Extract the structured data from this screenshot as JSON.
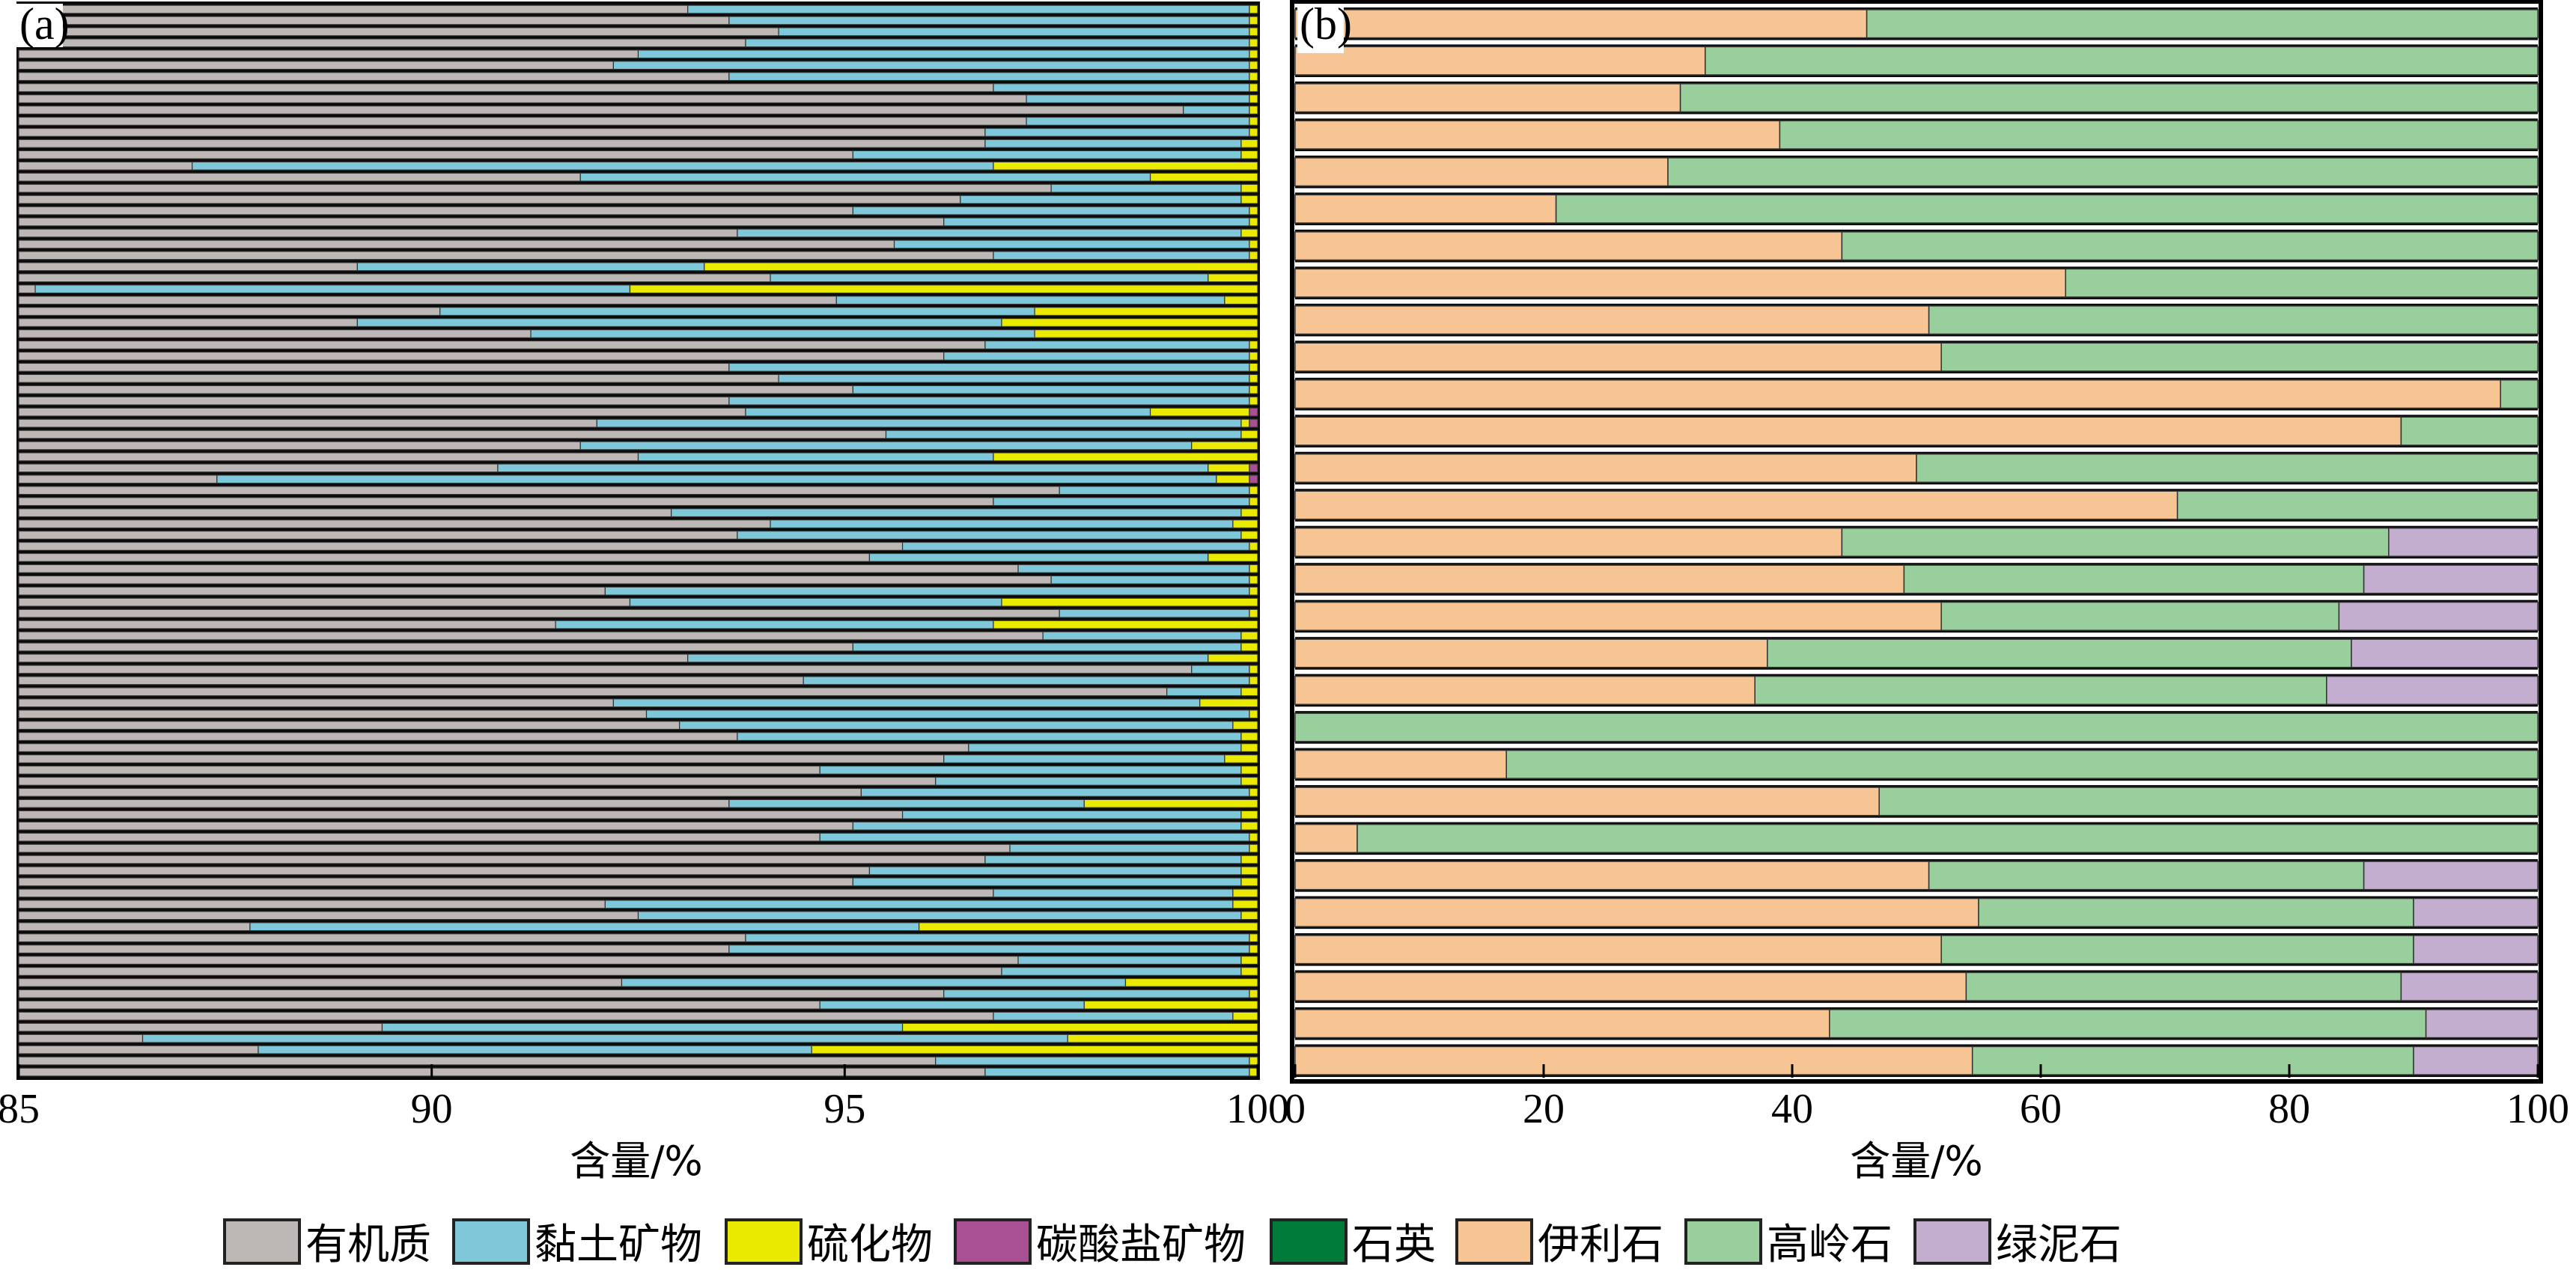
{
  "chart_data": [
    {
      "panel_label": "(a)",
      "type": "bar",
      "orientation": "horizontal",
      "stacked": true,
      "xlabel": "含量/%",
      "xlim": [
        85,
        100
      ],
      "xticks": [
        85,
        90,
        95,
        100
      ],
      "xtick_labels": [
        "85",
        "90",
        "95",
        "100"
      ],
      "series_order": [
        "有机质",
        "黏土矿物",
        "硫化物",
        "碳酸盐矿物"
      ],
      "cumulative_ends_note": "each row lists cumulative right-edge (in %) of 有机质, 黏土矿物, 硫化物, 碳酸盐矿物 segments; bars start at 0 (clipped to axis at 85)",
      "rows": [
        [
          93.1,
          99.9,
          100,
          100
        ],
        [
          93.6,
          99.9,
          100,
          100
        ],
        [
          94.2,
          99.9,
          100,
          100
        ],
        [
          93.8,
          99.9,
          100,
          100
        ],
        [
          92.5,
          99.9,
          100,
          100
        ],
        [
          92.2,
          99.9,
          100,
          100
        ],
        [
          93.6,
          99.9,
          100,
          100
        ],
        [
          96.8,
          99.9,
          100,
          100
        ],
        [
          97.2,
          99.9,
          100,
          100
        ],
        [
          99.1,
          99.9,
          100,
          100
        ],
        [
          97.2,
          99.9,
          100,
          100
        ],
        [
          96.7,
          99.9,
          100,
          100
        ],
        [
          96.7,
          99.8,
          100,
          100
        ],
        [
          95.1,
          99.8,
          100,
          100
        ],
        [
          87.1,
          96.8,
          100,
          100
        ],
        [
          91.8,
          98.7,
          100,
          100
        ],
        [
          97.5,
          99.8,
          100,
          100
        ],
        [
          96.4,
          99.8,
          100,
          100
        ],
        [
          95.1,
          99.9,
          100,
          100
        ],
        [
          96.2,
          99.9,
          100,
          100
        ],
        [
          93.7,
          99.8,
          100,
          100
        ],
        [
          95.6,
          99.9,
          100,
          100
        ],
        [
          96.8,
          99.9,
          100,
          100
        ],
        [
          89.1,
          93.3,
          100,
          100
        ],
        [
          94.1,
          99.4,
          100,
          100
        ],
        [
          85.2,
          92.4,
          100,
          100
        ],
        [
          94.9,
          99.6,
          100,
          100
        ],
        [
          90.1,
          97.3,
          100,
          100
        ],
        [
          89.1,
          96.9,
          100,
          100
        ],
        [
          91.2,
          97.3,
          100,
          100
        ],
        [
          96.7,
          99.9,
          100,
          100
        ],
        [
          96.2,
          99.9,
          100,
          100
        ],
        [
          93.6,
          99.9,
          100,
          100
        ],
        [
          94.2,
          99.9,
          100,
          100
        ],
        [
          95.1,
          99.9,
          100,
          100
        ],
        [
          93.6,
          99.9,
          100,
          100
        ],
        [
          93.8,
          98.7,
          99.9,
          100
        ],
        [
          92.0,
          99.8,
          99.9,
          100
        ],
        [
          95.5,
          99.8,
          100,
          100
        ],
        [
          91.8,
          99.2,
          100,
          100
        ],
        [
          92.5,
          96.8,
          100,
          100
        ],
        [
          90.8,
          99.4,
          99.9,
          100
        ],
        [
          87.4,
          99.5,
          99.9,
          100
        ],
        [
          97.6,
          99.9,
          100,
          100
        ],
        [
          96.8,
          99.9,
          100,
          100
        ],
        [
          92.9,
          99.8,
          100,
          100
        ],
        [
          94.1,
          99.7,
          100,
          100
        ],
        [
          93.7,
          99.8,
          100,
          100
        ],
        [
          95.7,
          99.9,
          100,
          100
        ],
        [
          95.3,
          99.4,
          100,
          100
        ],
        [
          97.1,
          99.9,
          100,
          100
        ],
        [
          97.5,
          99.9,
          100,
          100
        ],
        [
          92.1,
          99.9,
          100,
          100
        ],
        [
          92.4,
          96.9,
          100,
          100
        ],
        [
          97.6,
          99.9,
          100,
          100
        ],
        [
          91.5,
          96.8,
          100,
          100
        ],
        [
          97.4,
          99.8,
          100,
          100
        ],
        [
          95.1,
          99.8,
          100,
          100
        ],
        [
          93.1,
          99.4,
          100,
          100
        ],
        [
          99.2,
          99.9,
          100,
          100
        ],
        [
          94.5,
          99.9,
          100,
          100
        ],
        [
          98.9,
          99.8,
          100,
          100
        ],
        [
          92.2,
          99.3,
          100,
          100
        ],
        [
          92.6,
          99.9,
          100,
          100
        ],
        [
          93.0,
          99.7,
          100,
          100
        ],
        [
          93.7,
          99.8,
          100,
          100
        ],
        [
          96.5,
          99.8,
          100,
          100
        ],
        [
          96.2,
          99.6,
          100,
          100
        ],
        [
          94.7,
          99.8,
          100,
          100
        ],
        [
          96.1,
          99.8,
          100,
          100
        ],
        [
          95.2,
          99.9,
          100,
          100
        ],
        [
          93.6,
          97.9,
          100,
          100
        ],
        [
          95.7,
          99.8,
          100,
          100
        ],
        [
          95.1,
          99.8,
          100,
          100
        ],
        [
          94.7,
          99.9,
          100,
          100
        ],
        [
          97.0,
          99.9,
          100,
          100
        ],
        [
          96.7,
          99.8,
          100,
          100
        ],
        [
          95.3,
          99.8,
          100,
          100
        ],
        [
          95.1,
          99.8,
          100,
          100
        ],
        [
          96.8,
          99.7,
          100,
          100
        ],
        [
          92.1,
          99.7,
          100,
          100
        ],
        [
          92.5,
          99.8,
          100,
          100
        ],
        [
          87.8,
          95.9,
          100,
          100
        ],
        [
          93.8,
          99.9,
          100,
          100
        ],
        [
          93.6,
          99.9,
          100,
          100
        ],
        [
          97.1,
          99.8,
          100,
          100
        ],
        [
          96.9,
          99.8,
          100,
          100
        ],
        [
          92.3,
          98.4,
          100,
          100
        ],
        [
          96.2,
          99.9,
          100,
          100
        ],
        [
          94.7,
          97.9,
          100,
          100
        ],
        [
          96.8,
          99.7,
          100,
          100
        ],
        [
          89.4,
          95.7,
          100,
          100
        ],
        [
          86.5,
          97.7,
          100,
          100
        ],
        [
          87.9,
          94.6,
          100,
          100
        ],
        [
          96.1,
          99.9,
          100,
          100
        ],
        [
          96.7,
          99.9,
          100,
          100
        ]
      ]
    },
    {
      "panel_label": "(b)",
      "type": "bar",
      "orientation": "horizontal",
      "stacked": true,
      "xlabel": "含量/%",
      "xlim": [
        0,
        100
      ],
      "xticks": [
        0,
        20,
        40,
        60,
        80,
        100
      ],
      "xtick_labels": [
        "0",
        "20",
        "40",
        "60",
        "80",
        "100"
      ],
      "series_order": [
        "伊利石",
        "高岭石",
        "绿泥石"
      ],
      "series": [
        {
          "name": "伊利石",
          "values": [
            46,
            33,
            31,
            39,
            30,
            21,
            44,
            62,
            51,
            52,
            97,
            89,
            50,
            71,
            44,
            49,
            52,
            38,
            37,
            0,
            17,
            47,
            5,
            51,
            55,
            52,
            54,
            43,
            54.5
          ]
        },
        {
          "name": "高岭石",
          "values": [
            54,
            67,
            69,
            61,
            70,
            79,
            56,
            38,
            49,
            48,
            3,
            11,
            50,
            29,
            44,
            37,
            32,
            47,
            46,
            100,
            83,
            53,
            95,
            35,
            35,
            38,
            35,
            48,
            35.5
          ]
        },
        {
          "name": "绿泥石",
          "values": [
            0,
            0,
            0,
            0,
            0,
            0,
            0,
            0,
            0,
            0,
            0,
            0,
            0,
            0,
            12,
            14,
            16,
            15,
            17,
            0,
            0,
            0,
            0,
            14,
            10,
            10,
            11,
            9,
            10
          ]
        }
      ]
    }
  ],
  "legend": {
    "placement": "bottom",
    "items": [
      {
        "label": "有机质",
        "color": "#bdb8b6"
      },
      {
        "label": "黏土矿物",
        "color": "#7ec8da"
      },
      {
        "label": "硫化物",
        "color": "#e9ea00"
      },
      {
        "label": "碳酸盐矿物",
        "color": "#a94f93"
      },
      {
        "label": "石英",
        "color": "#017b3a"
      },
      {
        "label": "伊利石",
        "color": "#f6c593"
      },
      {
        "label": "高岭石",
        "color": "#98cf9c"
      },
      {
        "label": "绿泥石",
        "color": "#c3aed0"
      }
    ]
  },
  "colors": {
    "有机质": "#bdb8b6",
    "黏土矿物": "#7ec8da",
    "硫化物": "#e9ea00",
    "碳酸盐矿物": "#a94f93",
    "石英": "#017b3a",
    "伊利石": "#f6c593",
    "高岭石": "#98cf9c",
    "绿泥石": "#c3aed0"
  }
}
